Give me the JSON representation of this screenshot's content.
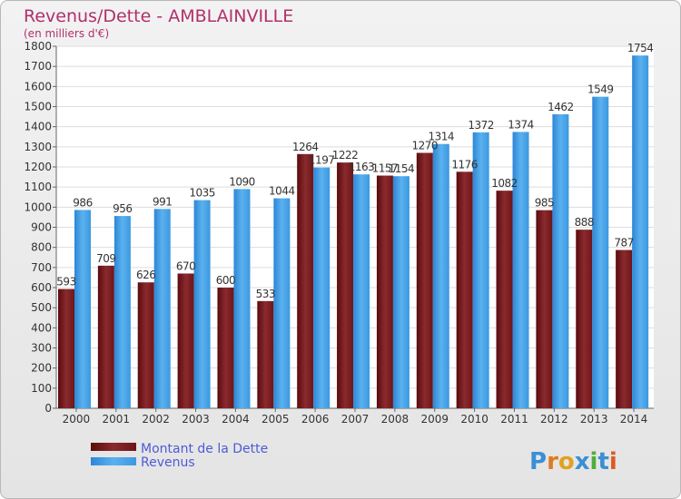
{
  "chart_data": {
    "type": "bar",
    "title": "Revenus/Dette - AMBLAINVILLE",
    "subtitle": "(en milliers d'€)",
    "categories": [
      "2000",
      "2001",
      "2002",
      "2003",
      "2004",
      "2005",
      "2006",
      "2007",
      "2008",
      "2009",
      "2010",
      "2011",
      "2012",
      "2013",
      "2014"
    ],
    "series": [
      {
        "name": "Montant de la Dette",
        "values": [
          593,
          709,
          626,
          670,
          600,
          533,
          1264,
          1222,
          1157,
          1270,
          1176,
          1082,
          985,
          888,
          787
        ]
      },
      {
        "name": "Revenus",
        "values": [
          986,
          956,
          991,
          1035,
          1090,
          1044,
          1197,
          1163,
          1154,
          1314,
          1372,
          1374,
          1462,
          1549,
          1754
        ]
      }
    ],
    "ylim": [
      0,
      1800
    ],
    "yticks": [
      0,
      100,
      200,
      300,
      400,
      500,
      600,
      700,
      800,
      900,
      1000,
      1100,
      1200,
      1300,
      1400,
      1500,
      1600,
      1700,
      1800
    ],
    "grid": true,
    "legend_position": "bottom-left"
  },
  "colors": {
    "title": "#b0306a",
    "dette": "#7a1f22",
    "revenus": "#3d9be0",
    "legend_text": "#4d5bd6",
    "background": "#ececec"
  },
  "watermark": "Proxiti"
}
